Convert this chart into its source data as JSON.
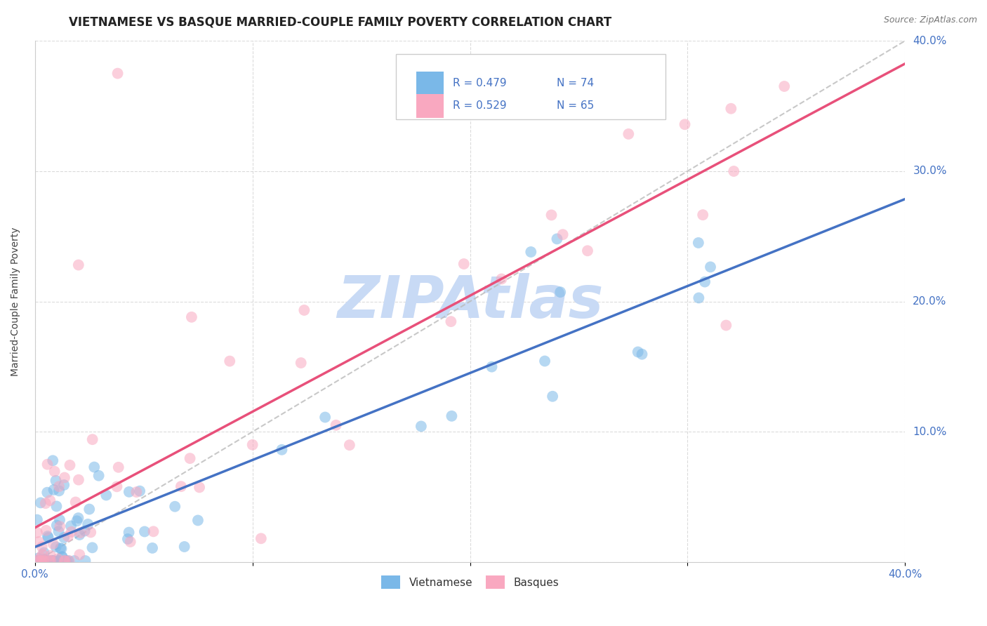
{
  "title": "VIETNAMESE VS BASQUE MARRIED-COUPLE FAMILY POVERTY CORRELATION CHART",
  "source": "Source: ZipAtlas.com",
  "ylabel": "Married-Couple Family Poverty",
  "xlim": [
    0.0,
    0.4
  ],
  "ylim": [
    0.0,
    0.4
  ],
  "xticks": [
    0.0,
    0.1,
    0.2,
    0.3,
    0.4
  ],
  "yticks": [
    0.0,
    0.1,
    0.2,
    0.3,
    0.4
  ],
  "xticklabels": [
    "0.0%",
    "",
    "",
    "",
    "40.0%"
  ],
  "yticklabels_right": [
    "",
    "10.0%",
    "20.0%",
    "30.0%",
    "40.0%"
  ],
  "vietnamese_color": "#7ab8e8",
  "basque_color": "#f9a8c0",
  "vietnamese_line_color": "#4472c4",
  "basque_line_color": "#e8507a",
  "dashed_line_color": "#bbbbbb",
  "watermark_text": "ZIPAtlas",
  "watermark_color": "#c8daf5",
  "tick_color": "#4472c4",
  "tick_fontsize": 11,
  "title_fontsize": 12,
  "axis_label_fontsize": 10,
  "background_color": "#ffffff",
  "grid_color": "#cccccc",
  "legend_vietnamese_R": "R = 0.479",
  "legend_vietnamese_N": "N = 74",
  "legend_basque_R": "R = 0.529",
  "legend_basque_N": "N = 65",
  "viet_slope": 0.62,
  "viet_intercept": 0.005,
  "basque_slope": 1.0,
  "basque_intercept": 0.005
}
